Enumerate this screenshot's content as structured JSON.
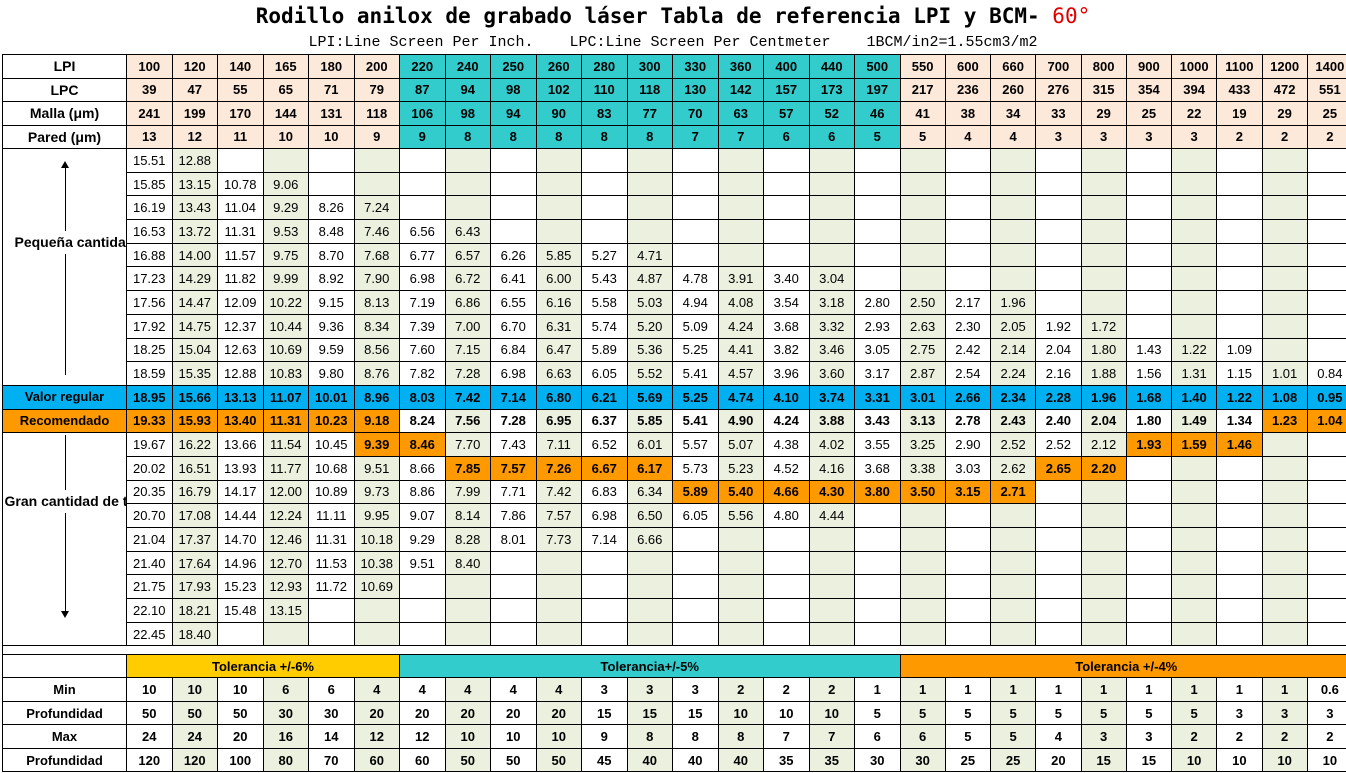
{
  "title": {
    "main": "Rodillo anilox de grabado láser Tabla de referencia LPI y BCM-",
    "degree": "60°"
  },
  "subtitle": "LPI:Line Screen Per Inch.    LPC:Line Screen Per Centmeter    1BCM/in2=1.55cm3/m2",
  "colors": {
    "peach": "#fde9d9",
    "teal": "#33cccc",
    "cyan": "#00b0f0",
    "orange": "#ff9900",
    "yellow": "#ffcc00",
    "green_alt": "#ebf1de",
    "white": "#ffffff"
  },
  "header_rows": [
    {
      "label": "LPI",
      "values": [
        "100",
        "120",
        "140",
        "165",
        "180",
        "200",
        "220",
        "240",
        "250",
        "260",
        "280",
        "300",
        "330",
        "360",
        "400",
        "440",
        "500",
        "550",
        "600",
        "660",
        "700",
        "800",
        "900",
        "1000",
        "1100",
        "1200",
        "1400"
      ]
    },
    {
      "label": "LPC",
      "values": [
        "39",
        "47",
        "55",
        "65",
        "71",
        "79",
        "87",
        "94",
        "98",
        "102",
        "110",
        "118",
        "130",
        "142",
        "157",
        "173",
        "197",
        "217",
        "236",
        "260",
        "276",
        "315",
        "354",
        "394",
        "433",
        "472",
        "551"
      ]
    },
    {
      "label": "Malla (μm)",
      "values": [
        "241",
        "199",
        "170",
        "144",
        "131",
        "118",
        "106",
        "98",
        "94",
        "90",
        "83",
        "77",
        "70",
        "63",
        "57",
        "52",
        "46",
        "41",
        "38",
        "34",
        "33",
        "29",
        "25",
        "22",
        "19",
        "29",
        "25"
      ]
    },
    {
      "label": "Pared (μm)",
      "values": [
        "13",
        "12",
        "11",
        "10",
        "10",
        "9",
        "9",
        "8",
        "8",
        "8",
        "8",
        "8",
        "7",
        "7",
        "6",
        "6",
        "5",
        "5",
        "4",
        "4",
        "3",
        "3",
        "3",
        "3",
        "2",
        "2",
        "2"
      ]
    }
  ],
  "labels": {
    "small_ink": "Pequeña cantidad de tinta",
    "regular": "Valor regular",
    "recommended": "Recomendado",
    "large_ink": "Gran cantidad de tinta"
  },
  "body_rows": [
    [
      "15.51",
      "12.88",
      "",
      "",
      "",
      "",
      "",
      "",
      "",
      "",
      "",
      "",
      "",
      "",
      "",
      "",
      "",
      "",
      "",
      "",
      "",
      "",
      "",
      "",
      "",
      "",
      ""
    ],
    [
      "15.85",
      "13.15",
      "10.78",
      "9.06",
      "",
      "",
      "",
      "",
      "",
      "",
      "",
      "",
      "",
      "",
      "",
      "",
      "",
      "",
      "",
      "",
      "",
      "",
      "",
      "",
      "",
      "",
      ""
    ],
    [
      "16.19",
      "13.43",
      "11.04",
      "9.29",
      "8.26",
      "7.24",
      "",
      "",
      "",
      "",
      "",
      "",
      "",
      "",
      "",
      "",
      "",
      "",
      "",
      "",
      "",
      "",
      "",
      "",
      "",
      "",
      ""
    ],
    [
      "16.53",
      "13.72",
      "11.31",
      "9.53",
      "8.48",
      "7.46",
      "6.56",
      "6.43",
      "",
      "",
      "",
      "",
      "",
      "",
      "",
      "",
      "",
      "",
      "",
      "",
      "",
      "",
      "",
      "",
      "",
      "",
      ""
    ],
    [
      "16.88",
      "14.00",
      "11.57",
      "9.75",
      "8.70",
      "7.68",
      "6.77",
      "6.57",
      "6.26",
      "5.85",
      "5.27",
      "4.71",
      "",
      "",
      "",
      "",
      "",
      "",
      "",
      "",
      "",
      "",
      "",
      "",
      "",
      "",
      ""
    ],
    [
      "17.23",
      "14.29",
      "11.82",
      "9.99",
      "8.92",
      "7.90",
      "6.98",
      "6.72",
      "6.41",
      "6.00",
      "5.43",
      "4.87",
      "4.78",
      "3.91",
      "3.40",
      "3.04",
      "",
      "",
      "",
      "",
      "",
      "",
      "",
      "",
      "",
      "",
      ""
    ],
    [
      "17.56",
      "14.47",
      "12.09",
      "10.22",
      "9.15",
      "8.13",
      "7.19",
      "6.86",
      "6.55",
      "6.16",
      "5.58",
      "5.03",
      "4.94",
      "4.08",
      "3.54",
      "3.18",
      "2.80",
      "2.50",
      "2.17",
      "1.96",
      "",
      "",
      "",
      "",
      "",
      "",
      ""
    ],
    [
      "17.92",
      "14.75",
      "12.37",
      "10.44",
      "9.36",
      "8.34",
      "7.39",
      "7.00",
      "6.70",
      "6.31",
      "5.74",
      "5.20",
      "5.09",
      "4.24",
      "3.68",
      "3.32",
      "2.93",
      "2.63",
      "2.30",
      "2.05",
      "1.92",
      "1.72",
      "",
      "",
      "",
      "",
      ""
    ],
    [
      "18.25",
      "15.04",
      "12.63",
      "10.69",
      "9.59",
      "8.56",
      "7.60",
      "7.15",
      "6.84",
      "6.47",
      "5.89",
      "5.36",
      "5.25",
      "4.41",
      "3.82",
      "3.46",
      "3.05",
      "2.75",
      "2.42",
      "2.14",
      "2.04",
      "1.80",
      "1.43",
      "1.22",
      "1.09",
      "",
      ""
    ],
    [
      "18.59",
      "15.35",
      "12.88",
      "10.83",
      "9.80",
      "8.76",
      "7.82",
      "7.28",
      "6.98",
      "6.63",
      "6.05",
      "5.52",
      "5.41",
      "4.57",
      "3.96",
      "3.60",
      "3.17",
      "2.87",
      "2.54",
      "2.24",
      "2.16",
      "1.88",
      "1.56",
      "1.31",
      "1.15",
      "1.01",
      "0.84"
    ],
    [
      "18.95",
      "15.66",
      "13.13",
      "11.07",
      "10.01",
      "8.96",
      "8.03",
      "7.42",
      "7.14",
      "6.80",
      "6.21",
      "5.69",
      "5.25",
      "4.74",
      "4.10",
      "3.74",
      "3.31",
      "3.01",
      "2.66",
      "2.34",
      "2.28",
      "1.96",
      "1.68",
      "1.40",
      "1.22",
      "1.08",
      "0.95"
    ],
    [
      "19.33",
      "15.93",
      "13.40",
      "11.31",
      "10.23",
      "9.18",
      "8.24",
      "7.56",
      "7.28",
      "6.95",
      "6.37",
      "5.85",
      "5.41",
      "4.90",
      "4.24",
      "3.88",
      "3.43",
      "3.13",
      "2.78",
      "2.43",
      "2.40",
      "2.04",
      "1.80",
      "1.49",
      "1.34",
      "1.23",
      "1.04"
    ],
    [
      "19.67",
      "16.22",
      "13.66",
      "11.54",
      "10.45",
      "9.39",
      "8.46",
      "7.70",
      "7.43",
      "7.11",
      "6.52",
      "6.01",
      "5.57",
      "5.07",
      "4.38",
      "4.02",
      "3.55",
      "3.25",
      "2.90",
      "2.52",
      "2.52",
      "2.12",
      "1.93",
      "1.59",
      "1.46",
      "",
      ""
    ],
    [
      "20.02",
      "16.51",
      "13.93",
      "11.77",
      "10.68",
      "9.51",
      "8.66",
      "7.85",
      "7.57",
      "7.26",
      "6.67",
      "6.17",
      "5.73",
      "5.23",
      "4.52",
      "4.16",
      "3.68",
      "3.38",
      "3.03",
      "2.62",
      "2.65",
      "2.20",
      "",
      "",
      "",
      "",
      ""
    ],
    [
      "20.35",
      "16.79",
      "14.17",
      "12.00",
      "10.89",
      "9.73",
      "8.86",
      "7.99",
      "7.71",
      "7.42",
      "6.83",
      "6.34",
      "5.89",
      "5.40",
      "4.66",
      "4.30",
      "3.80",
      "3.50",
      "3.15",
      "2.71",
      "",
      "",
      "",
      "",
      "",
      "",
      ""
    ],
    [
      "20.70",
      "17.08",
      "14.44",
      "12.24",
      "11.11",
      "9.95",
      "9.07",
      "8.14",
      "7.86",
      "7.57",
      "6.98",
      "6.50",
      "6.05",
      "5.56",
      "4.80",
      "4.44",
      "",
      "",
      "",
      "",
      "",
      "",
      "",
      "",
      "",
      "",
      ""
    ],
    [
      "21.04",
      "17.37",
      "14.70",
      "12.46",
      "11.31",
      "10.18",
      "9.29",
      "8.28",
      "8.01",
      "7.73",
      "7.14",
      "6.66",
      "",
      "",
      "",
      "",
      "",
      "",
      "",
      "",
      "",
      "",
      "",
      "",
      "",
      "",
      ""
    ],
    [
      "21.40",
      "17.64",
      "14.96",
      "12.70",
      "11.53",
      "10.38",
      "9.51",
      "8.40",
      "",
      "",
      "",
      "",
      "",
      "",
      "",
      "",
      "",
      "",
      "",
      "",
      "",
      "",
      "",
      "",
      "",
      "",
      ""
    ],
    [
      "21.75",
      "17.93",
      "15.23",
      "12.93",
      "11.72",
      "10.69",
      "",
      "",
      "",
      "",
      "",
      "",
      "",
      "",
      "",
      "",
      "",
      "",
      "",
      "",
      "",
      "",
      "",
      "",
      "",
      "",
      ""
    ],
    [
      "22.10",
      "18.21",
      "15.48",
      "13.15",
      "",
      "",
      "",
      "",
      "",
      "",
      "",
      "",
      "",
      "",
      "",
      "",
      "",
      "",
      "",
      "",
      "",
      "",
      "",
      "",
      "",
      "",
      ""
    ],
    [
      "22.45",
      "18.40",
      "",
      "",
      "",
      "",
      "",
      "",
      "",
      "",
      "",
      "",
      "",
      "",
      "",
      "",
      "",
      "",
      "",
      "",
      "",
      "",
      "",
      "",
      "",
      "",
      ""
    ]
  ],
  "tolerances": [
    "Tolerancia +/-6%",
    "Tolerancia+/-5%",
    "Tolerancia +/-4%"
  ],
  "bottom_rows": [
    {
      "label": "Min",
      "values": [
        "10",
        "10",
        "10",
        "6",
        "6",
        "4",
        "4",
        "4",
        "4",
        "4",
        "3",
        "3",
        "3",
        "2",
        "2",
        "2",
        "1",
        "1",
        "1",
        "1",
        "1",
        "1",
        "1",
        "1",
        "1",
        "1",
        "0.6"
      ]
    },
    {
      "label": "Profundidad",
      "values": [
        "50",
        "50",
        "50",
        "30",
        "30",
        "20",
        "20",
        "20",
        "20",
        "20",
        "15",
        "15",
        "15",
        "10",
        "10",
        "10",
        "5",
        "5",
        "5",
        "5",
        "5",
        "5",
        "5",
        "5",
        "3",
        "3",
        "3"
      ]
    },
    {
      "label": "Max",
      "values": [
        "24",
        "24",
        "20",
        "16",
        "14",
        "12",
        "12",
        "10",
        "10",
        "10",
        "9",
        "8",
        "8",
        "8",
        "7",
        "7",
        "6",
        "6",
        "5",
        "5",
        "4",
        "3",
        "3",
        "2",
        "2",
        "2",
        "2"
      ]
    },
    {
      "label": "Profundidad",
      "values": [
        "120",
        "120",
        "100",
        "80",
        "70",
        "60",
        "60",
        "50",
        "50",
        "50",
        "45",
        "40",
        "40",
        "40",
        "35",
        "35",
        "30",
        "30",
        "25",
        "25",
        "20",
        "15",
        "15",
        "10",
        "10",
        "10",
        "10"
      ]
    }
  ]
}
